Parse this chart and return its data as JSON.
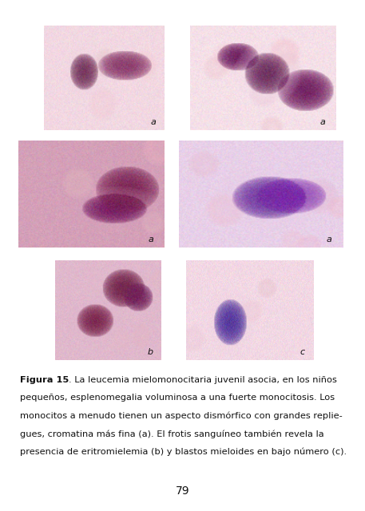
{
  "page_bg": "#ffffff",
  "caption_bold": "Figura 15",
  "caption_lines": [
    [
      true,
      "Figura 15",
      false,
      ". La leucemia mielomonocitaria juvenil asocia, en los niños"
    ],
    [
      false,
      "",
      false,
      "pequeños, esplenomegalia voluminosa a una fuerte monocitosis. Los"
    ],
    [
      false,
      "",
      false,
      "monocitos a menudo tienen un aspecto dismórfico con grandes replie-"
    ],
    [
      false,
      "",
      false,
      "gues, cromatina más fina (a). El frotis sanguíneo también revela la"
    ],
    [
      false,
      "",
      false,
      "presencia de eritromielemia (b) y blastos mieloides en bajo número (c)."
    ]
  ],
  "page_number": "79",
  "image_labels": [
    [
      "a",
      "a"
    ],
    [
      "a",
      "a"
    ],
    [
      "b",
      "c"
    ]
  ],
  "label_color": "#111111",
  "caption_fontsize": 8.2,
  "page_num_fontsize": 10,
  "fig_width": 4.57,
  "fig_height": 6.4,
  "dpi": 100,
  "bg_colors": [
    [
      [
        "#f2d8e2",
        "#f0ccd8"
      ],
      [
        "#f5e0e8",
        "#f0d4dc"
      ]
    ],
    [
      [
        "#d4a0b8",
        "#c890a8"
      ],
      [
        "#e8d0e8",
        "#dcc8e0"
      ]
    ],
    [
      [
        "#e0b8cc",
        "#d8a8c0"
      ],
      [
        "#f2d8e4",
        "#eeccd8"
      ]
    ]
  ],
  "cell_colors": [
    [
      [
        "#7a2860",
        "#7a2860"
      ],
      [
        "#6a2058",
        "#6a2058"
      ]
    ],
    [
      [
        "#6a1850",
        "#6a1850"
      ],
      [
        "#7030a0",
        "#7030a0"
      ]
    ],
    [
      [
        "#6a1850",
        "#6a1850"
      ],
      [
        "#5020a0",
        "#5020a0"
      ]
    ]
  ],
  "grid_positions": [
    [
      [
        0.12,
        0.745,
        0.33,
        0.205
      ],
      [
        0.52,
        0.745,
        0.4,
        0.205
      ]
    ],
    [
      [
        0.05,
        0.515,
        0.4,
        0.21
      ],
      [
        0.49,
        0.515,
        0.45,
        0.21
      ]
    ],
    [
      [
        0.15,
        0.295,
        0.29,
        0.195
      ],
      [
        0.51,
        0.295,
        0.35,
        0.195
      ]
    ]
  ]
}
